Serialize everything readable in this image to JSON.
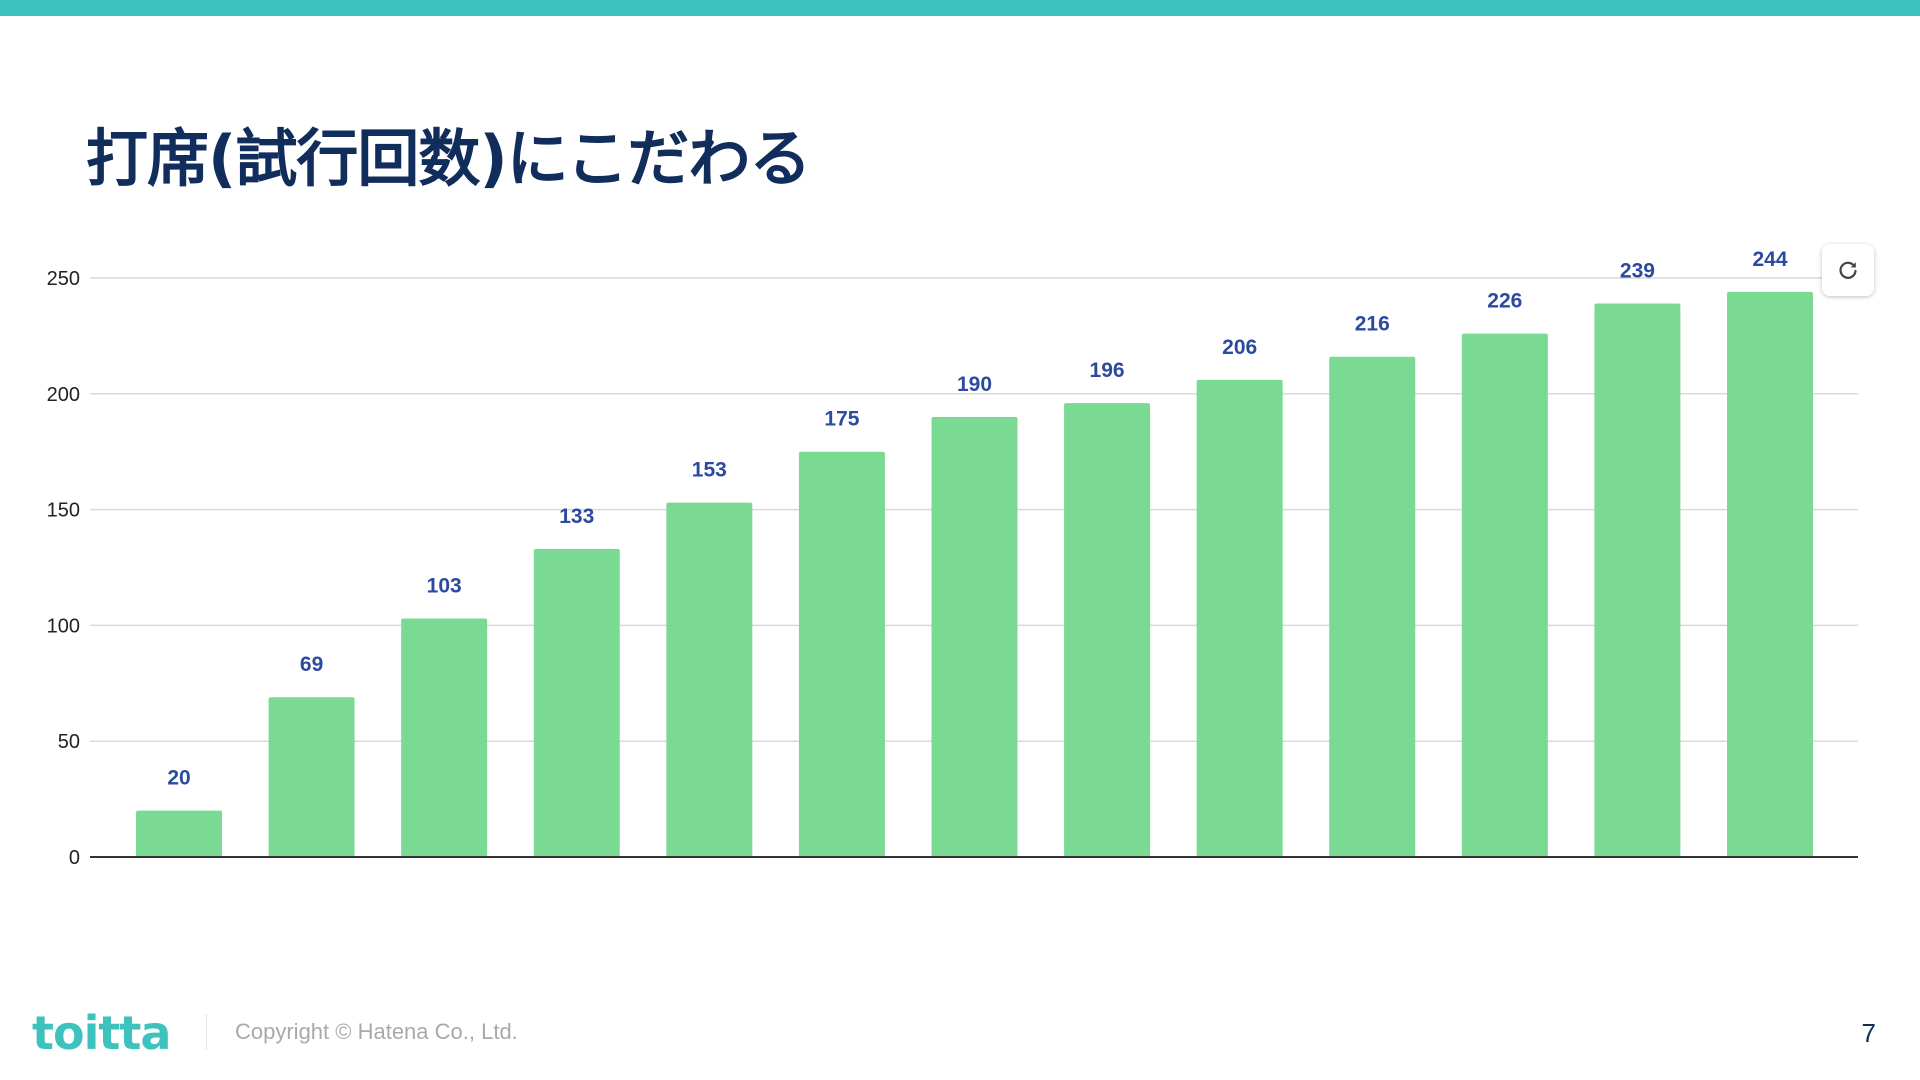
{
  "slide": {
    "title": "打席(試行回数)にこだわる",
    "footer_logo": "toitta",
    "copyright": "Copyright © Hatena Co., Ltd.",
    "page_number": "7",
    "refresh_icon": "refresh-icon"
  },
  "colors": {
    "accent": "#3ec2bd",
    "title": "#102d5c",
    "bar": "#7ad993",
    "data_label": "#2b4aa0",
    "gridline": "#d9d9d9",
    "axis": "#333333",
    "tick_label": "#222222"
  },
  "chart_data": {
    "type": "bar",
    "categories": [
      "",
      "",
      "",
      "",
      "",
      "",
      "",
      "",
      "",
      "",
      "",
      "",
      ""
    ],
    "values": [
      20,
      69,
      103,
      133,
      153,
      175,
      190,
      196,
      206,
      216,
      226,
      239,
      244
    ],
    "ylim": [
      0,
      250
    ],
    "yticks": [
      0,
      50,
      100,
      150,
      200,
      250
    ],
    "grid": true,
    "data_labels": true,
    "legend": "none"
  }
}
